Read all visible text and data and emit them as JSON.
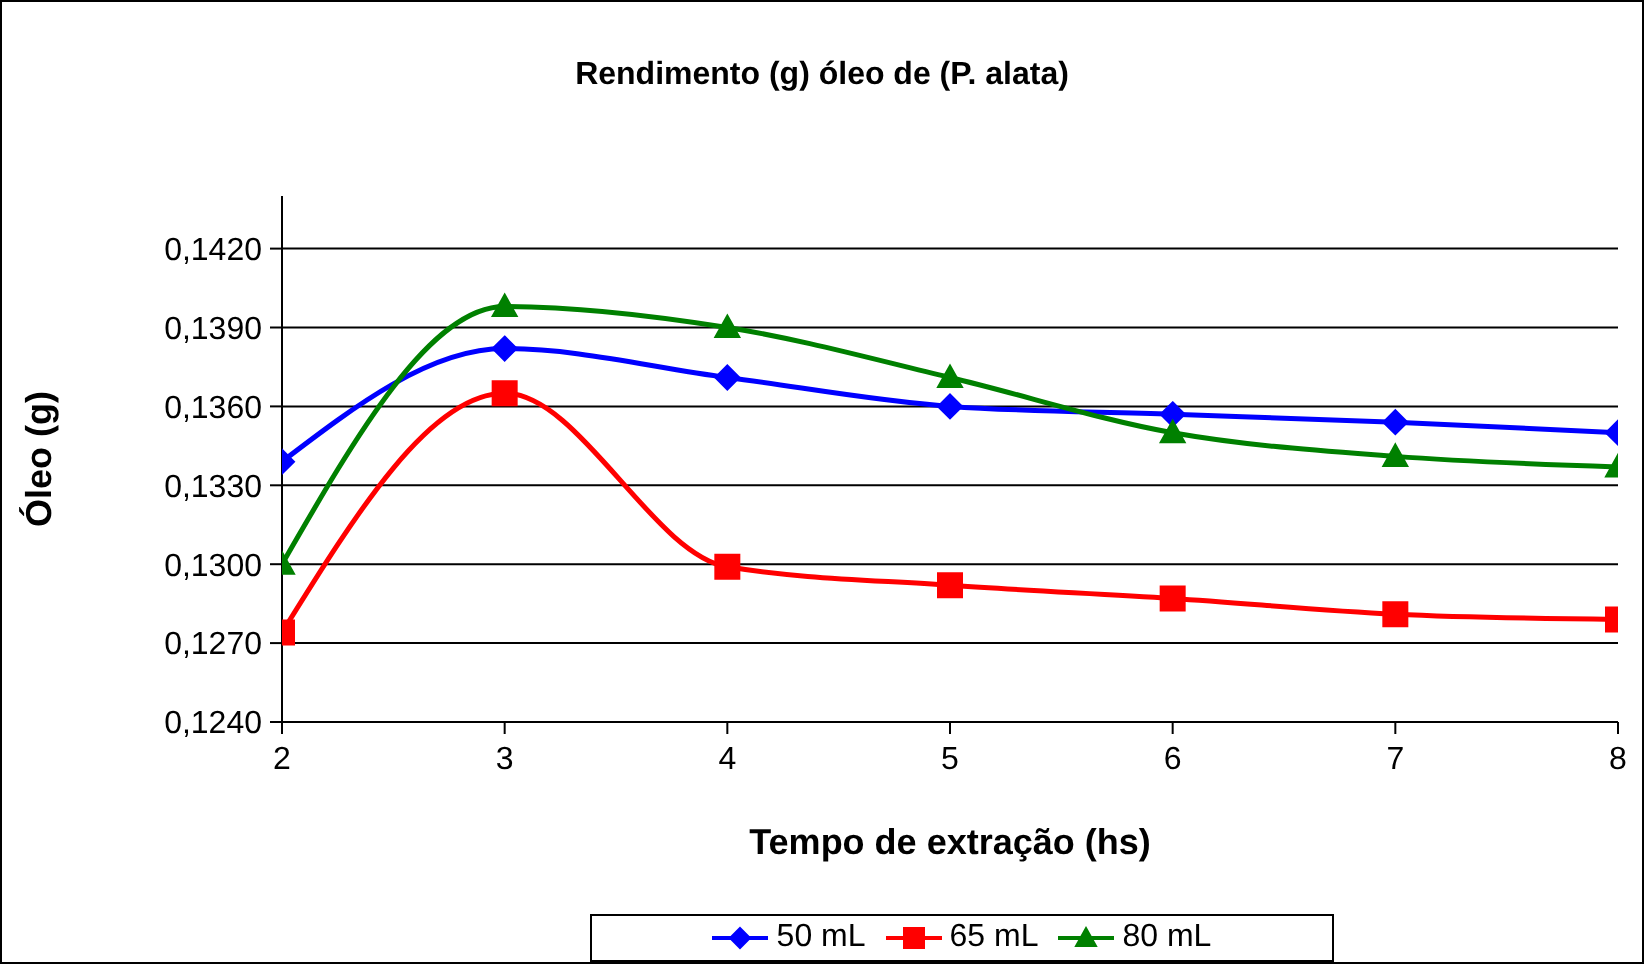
{
  "chart_data": {
    "type": "line",
    "title": "Rendimento (g) óleo de (P. alata)",
    "xlabel": "Tempo de extração (hs)",
    "ylabel": "Óleo (g)",
    "x": [
      2,
      3,
      4,
      5,
      6,
      7,
      8
    ],
    "xlim": [
      2,
      8
    ],
    "xticks": [
      2,
      3,
      4,
      5,
      6,
      7,
      8
    ],
    "ylim": [
      0.124,
      0.144
    ],
    "yticks": [
      {
        "value": 0.124,
        "label": "0,1240"
      },
      {
        "value": 0.127,
        "label": "0,1270"
      },
      {
        "value": 0.13,
        "label": "0,1300"
      },
      {
        "value": 0.133,
        "label": "0,1330"
      },
      {
        "value": 0.136,
        "label": "0,1360"
      },
      {
        "value": 0.139,
        "label": "0,1390"
      },
      {
        "value": 0.142,
        "label": "0,1420"
      }
    ],
    "grid": "y",
    "legend": "bottom",
    "line_style": "solid",
    "series": [
      {
        "name": "50 mL",
        "color": "#0000ff",
        "marker": "diamond",
        "values": [
          0.1339,
          0.1382,
          0.1371,
          0.136,
          0.1357,
          0.1354,
          0.135
        ]
      },
      {
        "name": "65 mL",
        "color": "#ff0000",
        "marker": "square",
        "values": [
          0.1274,
          0.1365,
          0.1299,
          0.1292,
          0.1287,
          0.1281,
          0.1279
        ]
      },
      {
        "name": "80 mL",
        "color": "#008000",
        "marker": "triangle",
        "values": [
          0.13,
          0.1398,
          0.139,
          0.1371,
          0.135,
          0.1341,
          0.1337
        ]
      }
    ]
  }
}
